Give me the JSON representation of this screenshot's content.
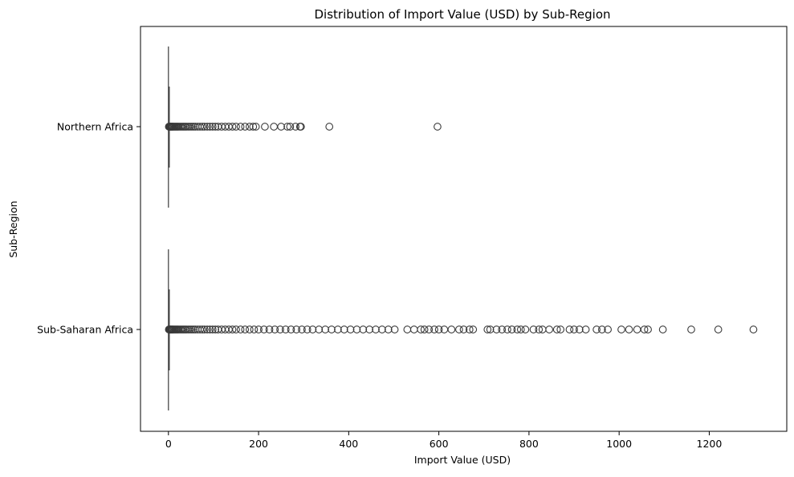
{
  "colors": {
    "box_fill": "#ffffff",
    "edge": "#3a3a3a",
    "background": "#ffffff"
  },
  "chart_data": {
    "type": "box",
    "orientation": "horizontal",
    "title": "Distribution of Import Value (USD) by Sub-Region",
    "xlabel": "Import Value (USD)",
    "ylabel": "Sub-Region",
    "xlim": [
      -62,
      1372
    ],
    "x_ticks": [
      0,
      200,
      400,
      600,
      800,
      1000,
      1200
    ],
    "grid": false,
    "categories": [
      "Northern Africa",
      "Sub-Saharan Africa"
    ],
    "series": [
      {
        "category": "Northern Africa",
        "whisker_low": 0,
        "q1": 0,
        "median": 0,
        "q3": 0.1,
        "whisker_high": 0.3,
        "outliers": [
          1,
          2,
          3,
          4,
          5,
          6,
          7,
          8,
          9,
          10,
          12,
          14,
          16,
          18,
          20,
          22,
          25,
          28,
          31,
          34,
          37,
          40,
          44,
          48,
          52,
          56,
          60,
          65,
          70,
          75,
          80,
          86,
          92,
          98,
          104,
          110,
          118,
          126,
          134,
          142,
          150,
          160,
          170,
          180,
          188,
          194,
          214,
          234,
          250,
          264,
          270,
          282,
          292,
          294,
          357,
          597
        ]
      },
      {
        "category": "Sub-Saharan Africa",
        "whisker_low": 0,
        "q1": 0,
        "median": 0,
        "q3": 0.1,
        "whisker_high": 0.3,
        "outliers": [
          1,
          2,
          3,
          4,
          5,
          6,
          7,
          8,
          9,
          10,
          12,
          14,
          16,
          18,
          20,
          22,
          25,
          28,
          31,
          34,
          37,
          40,
          44,
          48,
          52,
          56,
          60,
          65,
          70,
          75,
          80,
          86,
          92,
          98,
          104,
          110,
          118,
          126,
          134,
          142,
          150,
          160,
          170,
          180,
          190,
          200,
          212,
          224,
          236,
          248,
          260,
          272,
          284,
          296,
          308,
          320,
          334,
          348,
          362,
          376,
          390,
          404,
          418,
          432,
          446,
          460,
          474,
          488,
          502,
          530,
          545,
          560,
          568,
          578,
          590,
          600,
          612,
          628,
          645,
          655,
          668,
          676,
          708,
          714,
          728,
          740,
          752,
          762,
          774,
          782,
          792,
          810,
          822,
          830,
          845,
          862,
          870,
          890,
          900,
          912,
          926,
          950,
          962,
          975,
          1005,
          1022,
          1040,
          1056,
          1064,
          1097,
          1160,
          1220,
          1298
        ]
      }
    ]
  }
}
